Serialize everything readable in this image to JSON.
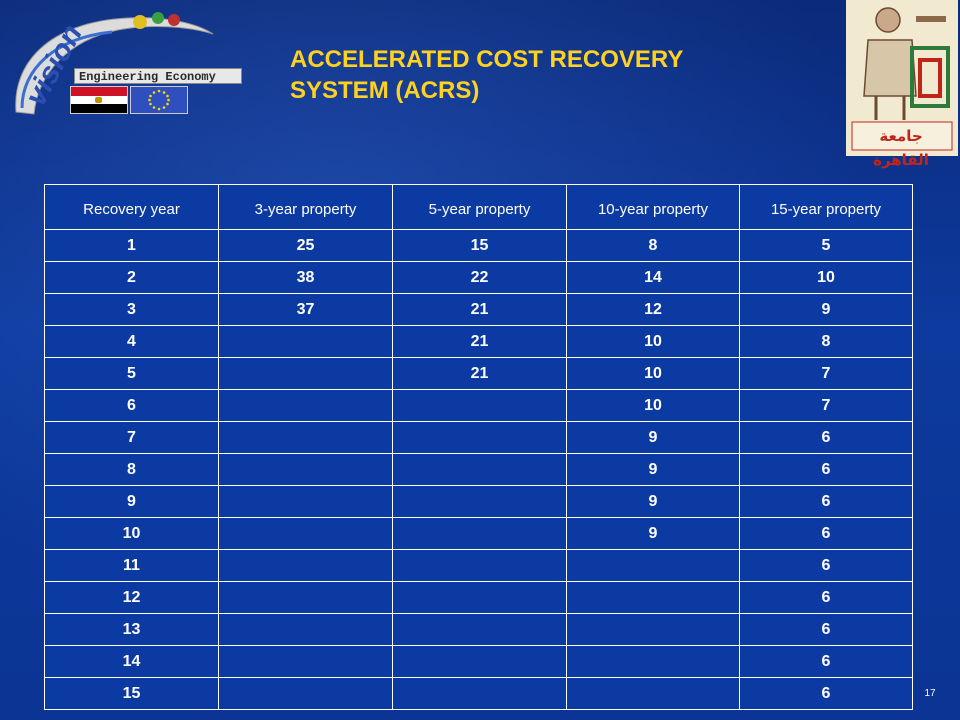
{
  "header": {
    "logo_text": "vision",
    "banner_text": "Engineering Economy",
    "cairo_caption": "جامعة القاهرة"
  },
  "title": {
    "line1": "ACCELERATED COST RECOVERY",
    "line2": "SYSTEM (ACRS)"
  },
  "table": {
    "columns": [
      "Recovery year",
      "3-year property",
      "5-year property",
      "10-year property",
      "15-year property"
    ],
    "rows": [
      [
        "1",
        "25",
        "15",
        "8",
        "5"
      ],
      [
        "2",
        "38",
        "22",
        "14",
        "10"
      ],
      [
        "3",
        "37",
        "21",
        "12",
        "9"
      ],
      [
        "4",
        "",
        "21",
        "10",
        "8"
      ],
      [
        "5",
        "",
        "21",
        "10",
        "7"
      ],
      [
        "6",
        "",
        "",
        "10",
        "7"
      ],
      [
        "7",
        "",
        "",
        "9",
        "6"
      ],
      [
        "8",
        "",
        "",
        "9",
        "6"
      ],
      [
        "9",
        "",
        "",
        "9",
        "6"
      ],
      [
        "10",
        "",
        "",
        "9",
        "6"
      ],
      [
        "11",
        "",
        "",
        "",
        "6"
      ],
      [
        "12",
        "",
        "",
        "",
        "6"
      ],
      [
        "13",
        "",
        "",
        "",
        "6"
      ],
      [
        "14",
        "",
        "",
        "",
        "6"
      ],
      [
        "15",
        "",
        "",
        "",
        "6"
      ]
    ]
  },
  "footer": {
    "page_number": "17"
  },
  "colors": {
    "background": "#0b3494",
    "title": "#ffd21f",
    "table_border": "#ffffff"
  }
}
